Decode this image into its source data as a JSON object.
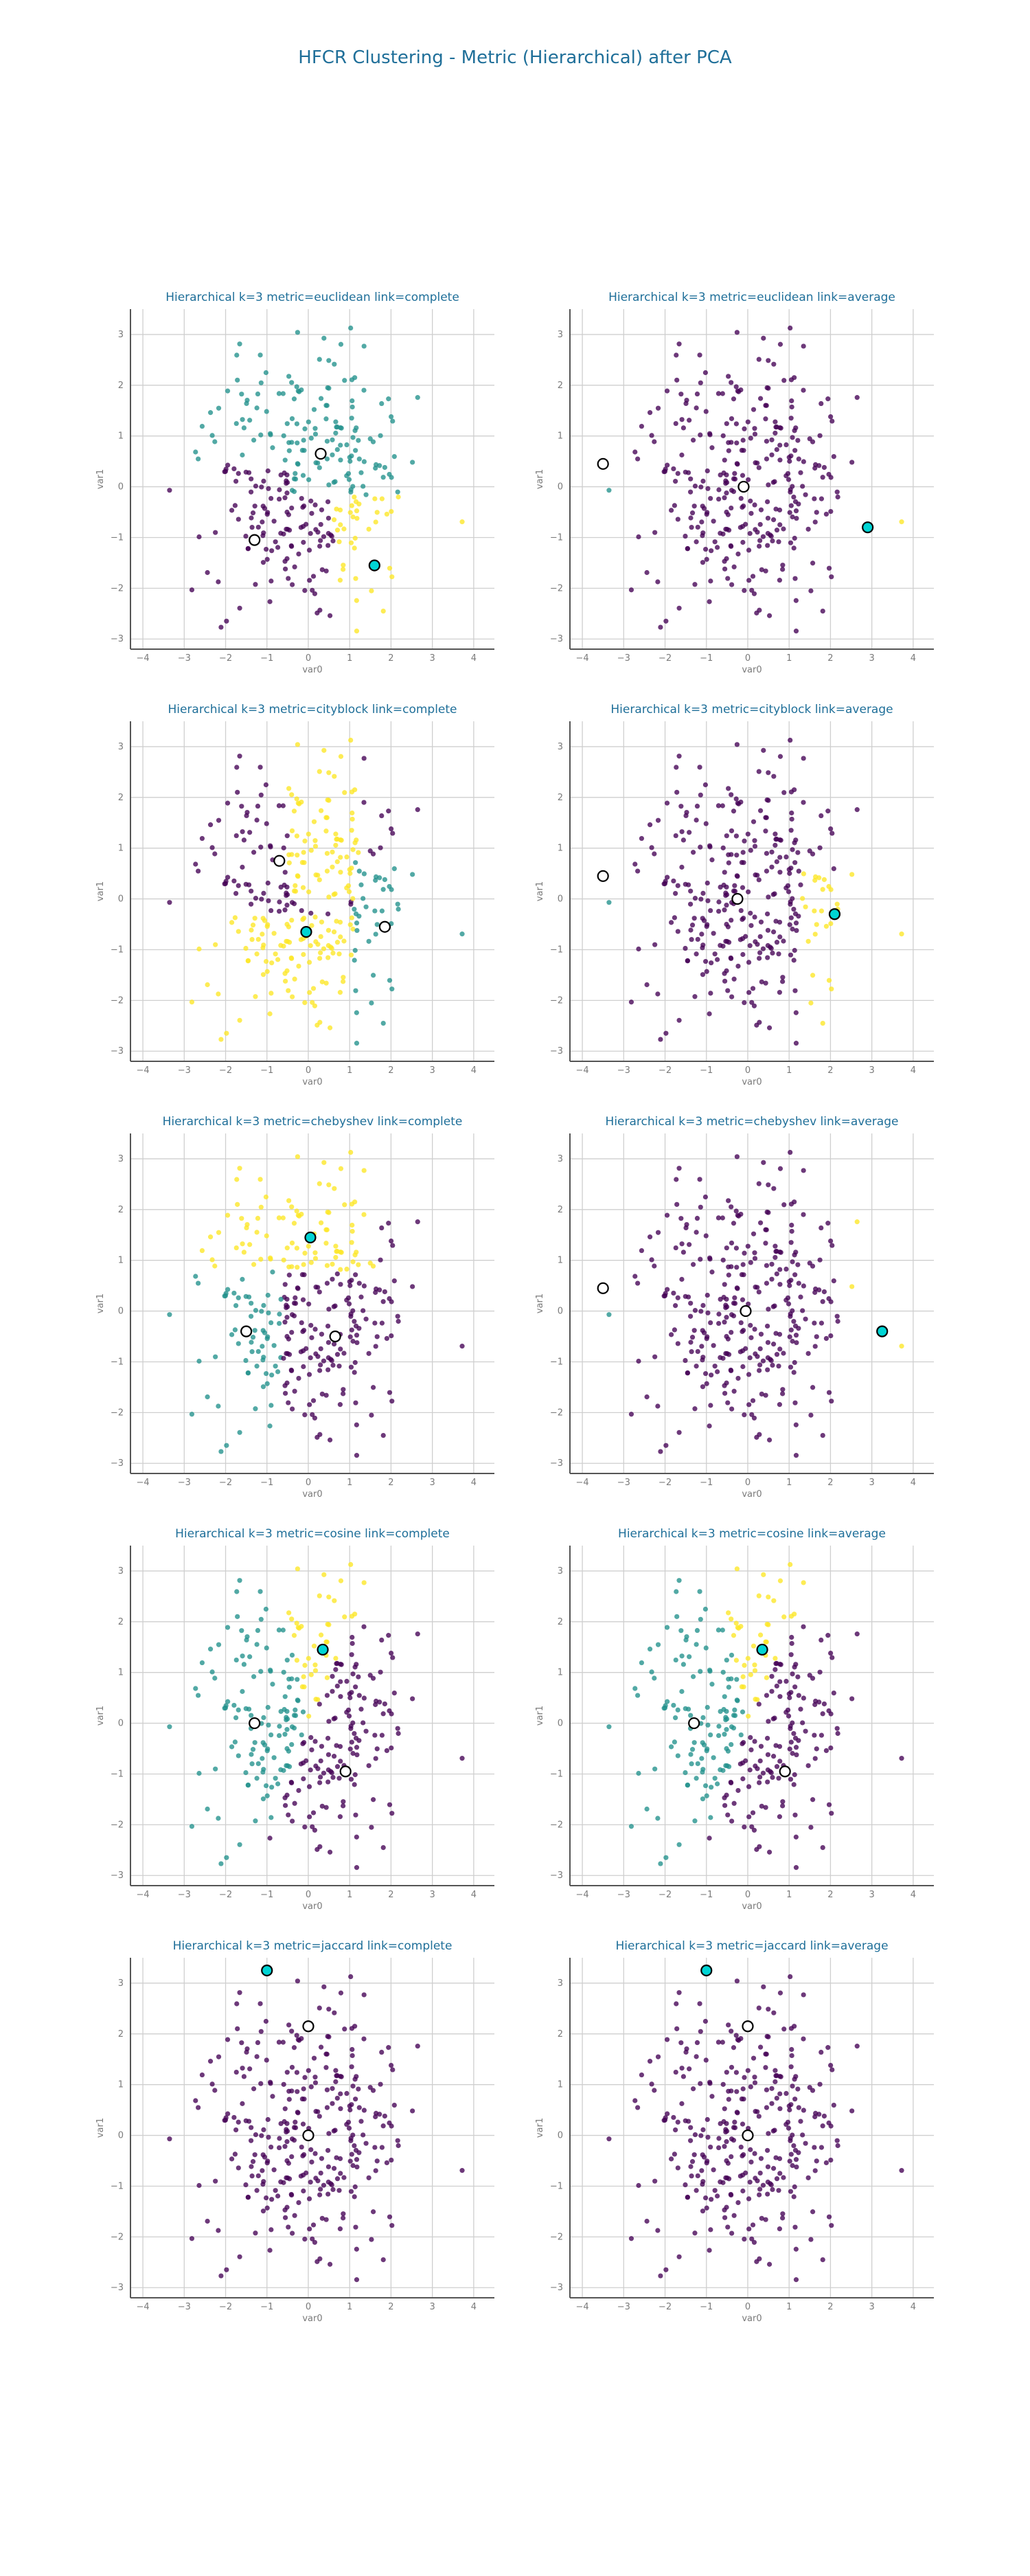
{
  "figure": {
    "suptitle": "HFCR Clustering - Metric (Hierarchical) after PCA",
    "colors": {
      "title": "#1f6f99",
      "cluster_0": "#440154",
      "cluster_1": "#21918c",
      "cluster_2": "#fde725",
      "centroid_primary": "#00d4d4",
      "centroid_other": "#ffffff",
      "grid": "#cfcfcf",
      "axis": "#555555"
    }
  },
  "chart_data": [
    {
      "type": "scatter",
      "title": "Hierarchical k=3 metric=euclidean link=complete",
      "xlabel": "var0",
      "ylabel": "var1",
      "xlim": [
        -4.3,
        4.5
      ],
      "ylim": [
        -3.2,
        3.5
      ],
      "xticks": [
        -4,
        -3,
        -2,
        -1,
        0,
        1,
        2,
        3,
        4
      ],
      "yticks": [
        -3,
        -2,
        -1,
        0,
        1,
        2,
        3
      ],
      "grid": true,
      "scheme": "euc_complete",
      "seed": 101,
      "centroids": [
        {
          "x": 0.3,
          "y": 0.65,
          "primary": false
        },
        {
          "x": -1.3,
          "y": -1.05,
          "primary": false
        },
        {
          "x": 1.6,
          "y": -1.55,
          "primary": true
        }
      ]
    },
    {
      "type": "scatter",
      "title": "Hierarchical k=3 metric=euclidean link=average",
      "xlabel": "var0",
      "ylabel": "var1",
      "xlim": [
        -4.3,
        4.5
      ],
      "ylim": [
        -3.2,
        3.5
      ],
      "xticks": [
        -4,
        -3,
        -2,
        -1,
        0,
        1,
        2,
        3,
        4
      ],
      "yticks": [
        -3,
        -2,
        -1,
        0,
        1,
        2,
        3
      ],
      "grid": true,
      "scheme": "euc_average",
      "seed": 101,
      "centroids": [
        {
          "x": -3.5,
          "y": 0.45,
          "primary": false
        },
        {
          "x": -0.1,
          "y": 0.0,
          "primary": false
        },
        {
          "x": 2.9,
          "y": -0.8,
          "primary": true
        }
      ]
    },
    {
      "type": "scatter",
      "title": "Hierarchical k=3 metric=cityblock link=complete",
      "xlabel": "var0",
      "ylabel": "var1",
      "xlim": [
        -4.3,
        4.5
      ],
      "ylim": [
        -3.2,
        3.5
      ],
      "xticks": [
        -4,
        -3,
        -2,
        -1,
        0,
        1,
        2,
        3,
        4
      ],
      "yticks": [
        -3,
        -2,
        -1,
        0,
        1,
        2,
        3
      ],
      "grid": true,
      "scheme": "city_complete",
      "seed": 101,
      "centroids": [
        {
          "x": -0.7,
          "y": 0.75,
          "primary": false
        },
        {
          "x": 1.85,
          "y": -0.55,
          "primary": false
        },
        {
          "x": -0.05,
          "y": -0.65,
          "primary": true
        }
      ]
    },
    {
      "type": "scatter",
      "title": "Hierarchical k=3 metric=cityblock link=average",
      "xlabel": "var0",
      "ylabel": "var1",
      "xlim": [
        -4.3,
        4.5
      ],
      "ylim": [
        -3.2,
        3.5
      ],
      "xticks": [
        -4,
        -3,
        -2,
        -1,
        0,
        1,
        2,
        3,
        4
      ],
      "yticks": [
        -3,
        -2,
        -1,
        0,
        1,
        2,
        3
      ],
      "grid": true,
      "scheme": "city_average",
      "seed": 101,
      "centroids": [
        {
          "x": -3.5,
          "y": 0.45,
          "primary": false
        },
        {
          "x": -0.25,
          "y": 0.0,
          "primary": false
        },
        {
          "x": 2.1,
          "y": -0.3,
          "primary": true
        }
      ]
    },
    {
      "type": "scatter",
      "title": "Hierarchical k=3 metric=chebyshev link=complete",
      "xlabel": "var0",
      "ylabel": "var1",
      "xlim": [
        -4.3,
        4.5
      ],
      "ylim": [
        -3.2,
        3.5
      ],
      "xticks": [
        -4,
        -3,
        -2,
        -1,
        0,
        1,
        2,
        3,
        4
      ],
      "yticks": [
        -3,
        -2,
        -1,
        0,
        1,
        2,
        3
      ],
      "grid": true,
      "scheme": "cheb_complete",
      "seed": 101,
      "centroids": [
        {
          "x": -1.5,
          "y": -0.4,
          "primary": false
        },
        {
          "x": 0.65,
          "y": -0.5,
          "primary": false
        },
        {
          "x": 0.05,
          "y": 1.45,
          "primary": true
        }
      ]
    },
    {
      "type": "scatter",
      "title": "Hierarchical k=3 metric=chebyshev link=average",
      "xlabel": "var0",
      "ylabel": "var1",
      "xlim": [
        -4.3,
        4.5
      ],
      "ylim": [
        -3.2,
        3.5
      ],
      "xticks": [
        -4,
        -3,
        -2,
        -1,
        0,
        1,
        2,
        3,
        4
      ],
      "yticks": [
        -3,
        -2,
        -1,
        0,
        1,
        2,
        3
      ],
      "grid": true,
      "scheme": "cheb_average",
      "seed": 101,
      "centroids": [
        {
          "x": -3.5,
          "y": 0.45,
          "primary": false
        },
        {
          "x": -0.05,
          "y": 0.0,
          "primary": false
        },
        {
          "x": 3.25,
          "y": -0.4,
          "primary": true
        }
      ]
    },
    {
      "type": "scatter",
      "title": "Hierarchical k=3 metric=cosine link=complete",
      "xlabel": "var0",
      "ylabel": "var1",
      "xlim": [
        -4.3,
        4.5
      ],
      "ylim": [
        -3.2,
        3.5
      ],
      "xticks": [
        -4,
        -3,
        -2,
        -1,
        0,
        1,
        2,
        3,
        4
      ],
      "yticks": [
        -3,
        -2,
        -1,
        0,
        1,
        2,
        3
      ],
      "grid": true,
      "scheme": "cos",
      "seed": 101,
      "centroids": [
        {
          "x": -1.3,
          "y": 0.0,
          "primary": false
        },
        {
          "x": 0.9,
          "y": -0.95,
          "primary": false
        },
        {
          "x": 0.35,
          "y": 1.45,
          "primary": true
        }
      ]
    },
    {
      "type": "scatter",
      "title": "Hierarchical k=3 metric=cosine link=average",
      "xlabel": "var0",
      "ylabel": "var1",
      "xlim": [
        -4.3,
        4.5
      ],
      "ylim": [
        -3.2,
        3.5
      ],
      "xticks": [
        -4,
        -3,
        -2,
        -1,
        0,
        1,
        2,
        3,
        4
      ],
      "yticks": [
        -3,
        -2,
        -1,
        0,
        1,
        2,
        3
      ],
      "grid": true,
      "scheme": "cos",
      "seed": 101,
      "centroids": [
        {
          "x": -1.3,
          "y": 0.0,
          "primary": false
        },
        {
          "x": 0.9,
          "y": -0.95,
          "primary": false
        },
        {
          "x": 0.35,
          "y": 1.45,
          "primary": true
        }
      ]
    },
    {
      "type": "scatter",
      "title": "Hierarchical k=3 metric=jaccard link=complete",
      "xlabel": "var0",
      "ylabel": "var1",
      "xlim": [
        -4.3,
        4.5
      ],
      "ylim": [
        -3.2,
        3.5
      ],
      "xticks": [
        -4,
        -3,
        -2,
        -1,
        0,
        1,
        2,
        3,
        4
      ],
      "yticks": [
        -3,
        -2,
        -1,
        0,
        1,
        2,
        3
      ],
      "grid": true,
      "scheme": "jaccard",
      "seed": 101,
      "centroids": [
        {
          "x": 0.0,
          "y": 2.15,
          "primary": false
        },
        {
          "x": 0.0,
          "y": 0.0,
          "primary": false
        },
        {
          "x": -1.0,
          "y": 3.25,
          "primary": true
        }
      ]
    },
    {
      "type": "scatter",
      "title": "Hierarchical k=3 metric=jaccard link=average",
      "xlabel": "var0",
      "ylabel": "var1",
      "xlim": [
        -4.3,
        4.5
      ],
      "ylim": [
        -3.2,
        3.5
      ],
      "xticks": [
        -4,
        -3,
        -2,
        -1,
        0,
        1,
        2,
        3,
        4
      ],
      "yticks": [
        -3,
        -2,
        -1,
        0,
        1,
        2,
        3
      ],
      "grid": true,
      "scheme": "jaccard",
      "seed": 101,
      "centroids": [
        {
          "x": 0.0,
          "y": 2.15,
          "primary": false
        },
        {
          "x": 0.0,
          "y": 0.0,
          "primary": false
        },
        {
          "x": -1.0,
          "y": 3.25,
          "primary": true
        }
      ]
    }
  ]
}
